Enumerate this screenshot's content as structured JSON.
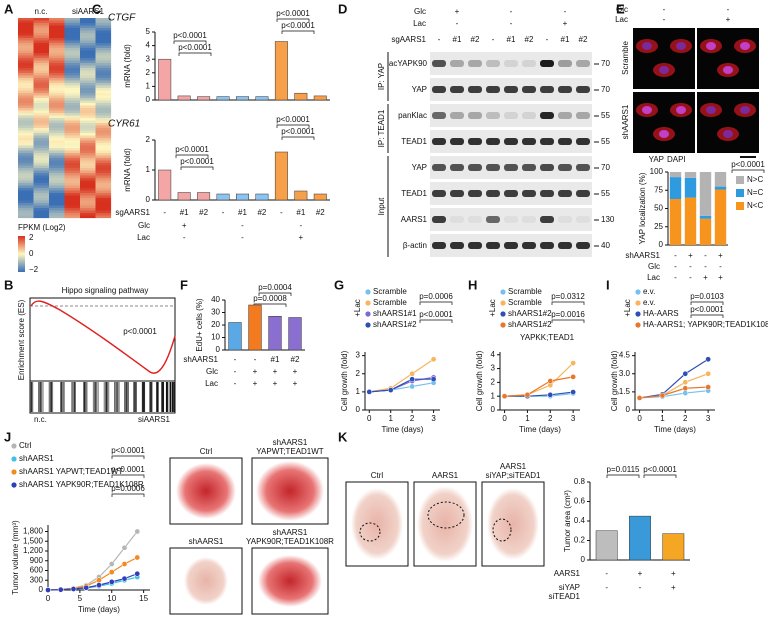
{
  "panels": {
    "letters": [
      "A",
      "B",
      "C",
      "D",
      "E",
      "F",
      "G",
      "H",
      "I",
      "J",
      "K"
    ],
    "A": {
      "columns": [
        "n.c.",
        "siAARS1"
      ],
      "legend_title": "FPKM (Log2)",
      "legend_ticks": [
        "2",
        "0",
        "−2"
      ]
    },
    "B": {
      "title": "Hippo signaling pathway",
      "y_label": "Enrichment score (ES)",
      "p": "p<0.0001",
      "left": "n.c.",
      "right": "siAARS1"
    },
    "D": {
      "header": [
        {
          "label": "Glc",
          "values": [
            "+",
            "-",
            "-"
          ]
        },
        {
          "label": "Lac",
          "values": [
            "-",
            "-",
            "+"
          ]
        },
        {
          "label": "sgAARS1",
          "values": [
            "-",
            "#1",
            "#2",
            "-",
            "#1",
            "#2",
            "-",
            "#1",
            "#2"
          ]
        }
      ],
      "groups": [
        "IP: YAP",
        "IP: TEAD1",
        "Input"
      ],
      "blots": [
        "lacYAPK90",
        "YAP",
        "panKlac",
        "TEAD1",
        "YAP",
        "TEAD1",
        "AARS1",
        "β-actin"
      ],
      "mw": [
        "70",
        "70",
        "55",
        "55",
        "70",
        "55",
        "130",
        "40"
      ]
    },
    "E": {
      "header": [
        {
          "label": "Glc",
          "values": [
            "-",
            "-"
          ]
        },
        {
          "label": "Lac",
          "values": [
            "-",
            "+"
          ]
        }
      ],
      "rows": [
        "Scramble",
        "shAARS1"
      ],
      "stain": [
        "YAP",
        "DAPI"
      ]
    },
    "J": {
      "images": [
        [
          "Ctrl"
        ],
        [
          "shAARS1",
          "YAPWT;TEAD1WT"
        ],
        [
          "shAARS1"
        ],
        [
          "shAARS1",
          "YAPK90R;TEAD1K108R"
        ]
      ]
    },
    "K": {
      "images": [
        [
          "Ctrl"
        ],
        [
          "AARS1"
        ],
        [
          "AARS1",
          "siYAP;siTEAD1"
        ]
      ]
    }
  },
  "chart_data": [
    {
      "type": "bar",
      "title": "CTGF",
      "y_label": "mRNA (fold)",
      "categories": [
        null,
        null,
        null,
        null,
        null,
        null,
        null,
        null,
        null
      ],
      "values": [
        3,
        0.3,
        0.25,
        0.25,
        0.25,
        0.25,
        4.3,
        0.5,
        0.3
      ],
      "colors": [
        "#f4a6a6",
        "#f4a6a6",
        "#f4a6a6",
        "#8cc3ef",
        "#8cc3ef",
        "#8cc3ef",
        "#f7a04b",
        "#f7a04b",
        "#f7a04b"
      ],
      "ylim": [
        0,
        5
      ],
      "yticks": [
        0,
        1,
        2,
        3,
        4,
        5
      ],
      "annotations": [
        "p<0.0001",
        "p<0.0001",
        "p<0.0001",
        "p<0.0001"
      ]
    },
    {
      "type": "bar",
      "title": "CYR61",
      "y_label": "mRNA (fold)",
      "categories": [
        null,
        null,
        null,
        null,
        null,
        null,
        null,
        null,
        null
      ],
      "values": [
        1,
        0.25,
        0.25,
        0.2,
        0.2,
        0.2,
        1.6,
        0.3,
        0.2
      ],
      "colors": [
        "#f4a6a6",
        "#f4a6a6",
        "#f4a6a6",
        "#8cc3ef",
        "#8cc3ef",
        "#8cc3ef",
        "#f7a04b",
        "#f7a04b",
        "#f7a04b"
      ],
      "ylim": [
        0,
        2
      ],
      "yticks": [
        0,
        1,
        2
      ],
      "annotations": [
        "p<0.0001",
        "p<0.0001",
        "p<0.0001",
        "p<0.0001"
      ],
      "rows": [
        {
          "label": "sgAARS1",
          "values": [
            "-",
            "#1",
            "#2",
            "-",
            "#1",
            "#2",
            "-",
            "#1",
            "#2"
          ]
        },
        {
          "label": "Glc",
          "values": [
            "+",
            "-",
            "-"
          ]
        },
        {
          "label": "Lac",
          "values": [
            "-",
            "-",
            "+"
          ]
        }
      ]
    },
    {
      "type": "bar",
      "y_label": "EdU+ cells (%)",
      "categories": [
        null,
        null,
        null,
        null
      ],
      "values": [
        22,
        36,
        27,
        26
      ],
      "colors": [
        "#5aa9e6",
        "#f47a20",
        "#8a6fd1",
        "#8a6fd1"
      ],
      "ylim": [
        0,
        40
      ],
      "yticks": [
        0,
        10,
        20,
        30,
        40
      ],
      "annotations": [
        "p=0.0004",
        "p=0.0008"
      ],
      "rows": [
        {
          "label": "shAARS1",
          "values": [
            "-",
            "-",
            "#1",
            "#2"
          ]
        },
        {
          "label": "Glc",
          "values": [
            "-",
            "+",
            "+",
            "+"
          ]
        },
        {
          "label": "Lac",
          "values": [
            "-",
            "+",
            "+",
            "+"
          ]
        }
      ]
    },
    {
      "type": "line",
      "x_label": "Time (days)",
      "y_label": "Cell growth (fold)",
      "note": "+Lac",
      "x": [
        0,
        1,
        2,
        3
      ],
      "xlim": [
        -0.2,
        3.3
      ],
      "xticks": [
        0,
        1,
        2,
        3
      ],
      "ylim": [
        0,
        3.2
      ],
      "yticks": [
        0,
        1,
        2,
        3
      ],
      "annotations": [
        "p=0.0006",
        "p<0.0001"
      ],
      "series": [
        {
          "name": "Scramble",
          "color": "#74c0ee",
          "values": [
            1,
            1.1,
            1.3,
            1.5
          ]
        },
        {
          "name": "Scramble",
          "color": "#f6b55e",
          "values": [
            1,
            1.2,
            2,
            2.8
          ]
        },
        {
          "name": "shAARS1#1",
          "color": "#7b68d6",
          "values": [
            1,
            1.1,
            1.6,
            1.8
          ]
        },
        {
          "name": "shAARS1#2",
          "color": "#2f4fb8",
          "values": [
            1,
            1.1,
            1.7,
            1.7
          ]
        }
      ]
    },
    {
      "type": "line",
      "x_label": "Time (days)",
      "y_label": "Cell growth (fold)",
      "note": "+Lac",
      "subtitle": "YAPKK;TEAD1",
      "x": [
        0,
        1,
        2,
        3
      ],
      "xlim": [
        -0.2,
        3.3
      ],
      "xticks": [
        0,
        1,
        2,
        3
      ],
      "ylim": [
        0,
        4.2
      ],
      "yticks": [
        0,
        1,
        2,
        3,
        4
      ],
      "annotations": [
        "p=0.0312",
        "p=0.0016"
      ],
      "series": [
        {
          "name": "Scramble",
          "color": "#74c0ee",
          "values": [
            1,
            1,
            1,
            1.2
          ]
        },
        {
          "name": "Scramble",
          "color": "#f6b55e",
          "values": [
            1,
            1.1,
            1.8,
            3.4
          ]
        },
        {
          "name": "shAARS1#2",
          "color": "#2f4fb8",
          "values": [
            1,
            1,
            1.1,
            1.3
          ]
        },
        {
          "name": "shAARS1#2",
          "color": "#e8762b",
          "values": [
            1,
            1.1,
            2.1,
            2.4
          ]
        }
      ]
    },
    {
      "type": "line",
      "x_label": "Time (days)",
      "y_label": "Cell growth (fold)",
      "note": "+Lac",
      "x": [
        0,
        1,
        2,
        3
      ],
      "xlim": [
        -0.2,
        3.3
      ],
      "xticks": [
        0,
        1,
        2,
        3
      ],
      "ylim": [
        0,
        4.8
      ],
      "yticks": [
        0,
        1.5,
        {
          "value": 3,
          "label": "3.0"
        },
        4.5
      ],
      "annotations": [
        "p=0.0103",
        "p<0.0001"
      ],
      "series": [
        {
          "name": "e.v.",
          "color": "#74c0ee",
          "values": [
            1,
            1.1,
            1.4,
            1.6
          ]
        },
        {
          "name": "e.v.",
          "color": "#f6b55e",
          "values": [
            1,
            1.2,
            2.3,
            3
          ]
        },
        {
          "name": "HA-AARS",
          "color": "#2f4fb8",
          "values": [
            1,
            1.3,
            3,
            4.2
          ]
        },
        {
          "name": "HA-AARS1; YAPK90R;TEAD1K108R",
          "color": "#e8762b",
          "values": [
            1,
            1.2,
            1.8,
            1.9
          ]
        }
      ]
    },
    {
      "type": "line",
      "x_label": "Time (days)",
      "y_label": "Tumor volume (mm³)",
      "x": [
        0,
        2,
        4,
        6,
        8,
        10,
        12,
        14
      ],
      "xlim": [
        0,
        16
      ],
      "xticks": [
        0,
        5,
        10,
        15
      ],
      "ylim": [
        0,
        2000
      ],
      "yticks": [
        0,
        300,
        600,
        900,
        {
          "value": 1200,
          "label": "1,200"
        },
        {
          "value": 1500,
          "label": "1,500"
        },
        {
          "value": 1800,
          "label": "1,800"
        }
      ],
      "annotations": [
        "p<0.0001",
        "p<0.0001",
        "p=0.0006"
      ],
      "series": [
        {
          "name": "Ctrl",
          "color": "#b5b5b5",
          "values": [
            0,
            20,
            60,
            150,
            400,
            800,
            1300,
            1800
          ]
        },
        {
          "name": "shAARS1",
          "color": "#3fc1e8",
          "values": [
            0,
            10,
            30,
            60,
            120,
            200,
            300,
            400
          ]
        },
        {
          "name": "shAARS1 YAPWT;TEAD1WT",
          "color": "#f28a1e",
          "values": [
            0,
            15,
            50,
            120,
            300,
            550,
            800,
            1000
          ]
        },
        {
          "name": "shAARS1 YAPK90R;TEAD1K108R",
          "color": "#2f3fb8",
          "values": [
            0,
            10,
            30,
            70,
            150,
            250,
            350,
            500
          ]
        }
      ]
    },
    {
      "type": "bar",
      "y_label": "Tumor area (cm²)",
      "categories": [
        null,
        null,
        null
      ],
      "values": [
        0.3,
        0.45,
        0.27
      ],
      "colors": [
        "#bdbdbd",
        "#3a9ad9",
        "#f5a623"
      ],
      "ylim": [
        0,
        0.8
      ],
      "yticks": [
        0,
        0.2,
        0.4,
        0.6,
        0.8
      ],
      "annotations": [
        "p=0.0115",
        "p<0.0001"
      ],
      "rows": [
        {
          "label": [
            "AARS1"
          ],
          "values": [
            "-",
            "+",
            "+"
          ]
        },
        {
          "label": [
            "siYAP",
            "siTEAD1"
          ],
          "values": [
            "-",
            "-",
            "+"
          ]
        }
      ]
    },
    {
      "type": "stacked_bar",
      "y_label": "YAP localization (%)",
      "categories": [
        null,
        null,
        null,
        null
      ],
      "ylim": [
        0,
        100
      ],
      "yticks": [
        0,
        25,
        50,
        75,
        100
      ],
      "annotations": [
        "p<0.0001"
      ],
      "series": [
        {
          "name": "N<C",
          "color": "#f7941d",
          "values": [
            63,
            65,
            36,
            76
          ]
        },
        {
          "name": "N=C",
          "color": "#2e9be0",
          "values": [
            30,
            27,
            4,
            4
          ]
        },
        {
          "name": "N>C",
          "color": "#b3b3b3",
          "values": [
            7,
            8,
            60,
            20
          ]
        }
      ],
      "rows": [
        {
          "label": "shAARS1",
          "values": [
            "-",
            "+",
            "-",
            "+"
          ]
        },
        {
          "label": "Glc",
          "values": [
            "-",
            "-",
            "-",
            "-"
          ]
        },
        {
          "label": "Lac",
          "values": [
            "-",
            "-",
            "+",
            "+"
          ]
        }
      ]
    }
  ]
}
